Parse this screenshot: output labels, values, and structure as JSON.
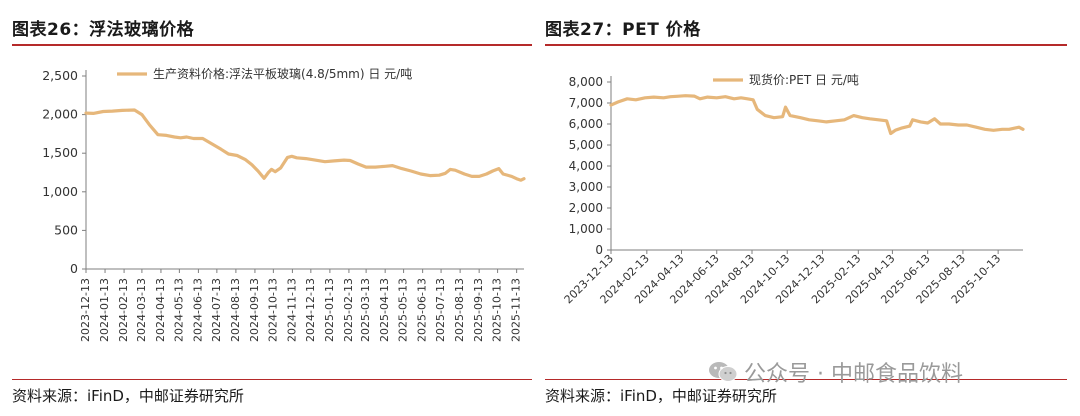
{
  "left_panel": {
    "title": "图表26：浮法玻璃价格",
    "source": "资料来源：iFinD，中邮证券研究所"
  },
  "right_panel": {
    "title": "图表27：PET 价格",
    "source": "资料来源：iFinD，中邮证券研究所"
  },
  "watermark": "公众号 · 中邮食品饮料",
  "colors": {
    "series": "#e6b77b",
    "rule": "#b52a2a"
  },
  "chart_data": [
    {
      "type": "line",
      "title": "图表26：浮法玻璃价格",
      "legend_position": "top",
      "ylim": [
        0,
        2500
      ],
      "yticks": [
        0,
        500,
        1000,
        1500,
        2000,
        2500
      ],
      "ytick_labels": [
        "0",
        "500",
        "1,000",
        "1,500",
        "2,000",
        "2,500"
      ],
      "xtick_labels": [
        "2023-12-13",
        "2024-01-13",
        "2024-02-13",
        "2024-03-13",
        "2024-04-13",
        "2024-05-13",
        "2024-06-13",
        "2024-07-13",
        "2024-08-13",
        "2024-09-13",
        "2024-10-13",
        "2024-11-13",
        "2024-12-13",
        "2025-01-13",
        "2025-02-13",
        "2025-03-13",
        "2025-04-13",
        "2025-05-13",
        "2025-06-13",
        "2025-07-13",
        "2025-08-13",
        "2025-09-13",
        "2025-10-13",
        "2025-11-13"
      ],
      "x_start": "2023-12-13",
      "x_end": "2025-11-25",
      "series": [
        {
          "name": "生产资料价格:浮法平板玻璃(4.8/5mm) 日 元/吨",
          "points": [
            [
              "2023-12-13",
              2020
            ],
            [
              "2023-12-25",
              2015
            ],
            [
              "2024-01-10",
              2040
            ],
            [
              "2024-01-25",
              2045
            ],
            [
              "2024-02-10",
              2055
            ],
            [
              "2024-03-01",
              2060
            ],
            [
              "2024-03-13",
              2000
            ],
            [
              "2024-03-25",
              1870
            ],
            [
              "2024-04-08",
              1740
            ],
            [
              "2024-04-22",
              1730
            ],
            [
              "2024-05-05",
              1710
            ],
            [
              "2024-05-15",
              1700
            ],
            [
              "2024-05-25",
              1710
            ],
            [
              "2024-06-05",
              1690
            ],
            [
              "2024-06-20",
              1690
            ],
            [
              "2024-07-05",
              1620
            ],
            [
              "2024-07-20",
              1550
            ],
            [
              "2024-08-01",
              1490
            ],
            [
              "2024-08-15",
              1470
            ],
            [
              "2024-08-28",
              1420
            ],
            [
              "2024-09-08",
              1350
            ],
            [
              "2024-09-18",
              1270
            ],
            [
              "2024-09-28",
              1175
            ],
            [
              "2024-10-05",
              1250
            ],
            [
              "2024-10-10",
              1290
            ],
            [
              "2024-10-16",
              1260
            ],
            [
              "2024-10-25",
              1310
            ],
            [
              "2024-11-05",
              1445
            ],
            [
              "2024-11-12",
              1460
            ],
            [
              "2024-11-20",
              1440
            ],
            [
              "2024-12-05",
              1430
            ],
            [
              "2024-12-20",
              1410
            ],
            [
              "2025-01-05",
              1390
            ],
            [
              "2025-01-20",
              1400
            ],
            [
              "2025-02-05",
              1410
            ],
            [
              "2025-02-15",
              1405
            ],
            [
              "2025-02-28",
              1360
            ],
            [
              "2025-03-13",
              1320
            ],
            [
              "2025-03-28",
              1320
            ],
            [
              "2025-04-13",
              1330
            ],
            [
              "2025-04-25",
              1340
            ],
            [
              "2025-05-10",
              1300
            ],
            [
              "2025-05-25",
              1270
            ],
            [
              "2025-06-10",
              1230
            ],
            [
              "2025-06-25",
              1210
            ],
            [
              "2025-07-10",
              1215
            ],
            [
              "2025-07-20",
              1240
            ],
            [
              "2025-07-28",
              1290
            ],
            [
              "2025-08-05",
              1280
            ],
            [
              "2025-08-20",
              1230
            ],
            [
              "2025-09-01",
              1200
            ],
            [
              "2025-09-13",
              1200
            ],
            [
              "2025-09-25",
              1230
            ],
            [
              "2025-10-05",
              1270
            ],
            [
              "2025-10-15",
              1300
            ],
            [
              "2025-10-22",
              1230
            ],
            [
              "2025-11-05",
              1200
            ],
            [
              "2025-11-13",
              1170
            ],
            [
              "2025-11-20",
              1150
            ],
            [
              "2025-11-25",
              1170
            ]
          ]
        }
      ]
    },
    {
      "type": "line",
      "title": "图表27：PET 价格",
      "legend_position": "top",
      "ylim": [
        0,
        8000
      ],
      "yticks": [
        0,
        1000,
        2000,
        3000,
        4000,
        5000,
        6000,
        7000,
        8000
      ],
      "ytick_labels": [
        "0",
        "1,000",
        "2,000",
        "3,000",
        "4,000",
        "5,000",
        "6,000",
        "7,000",
        "8,000"
      ],
      "xtick_labels": [
        "2023-12-13",
        "2024-02-13",
        "2024-04-13",
        "2024-06-13",
        "2024-08-13",
        "2024-10-13",
        "2024-12-13",
        "2025-02-13",
        "2025-04-13",
        "2025-06-13",
        "2025-08-13",
        "2025-10-13"
      ],
      "x_start": "2023-12-13",
      "x_end": "2025-11-25",
      "series": [
        {
          "name": "现货价:PET 日 元/吨",
          "points": [
            [
              "2023-12-13",
              6900
            ],
            [
              "2023-12-25",
              7050
            ],
            [
              "2024-01-10",
              7200
            ],
            [
              "2024-01-25",
              7150
            ],
            [
              "2024-02-10",
              7250
            ],
            [
              "2024-02-25",
              7280
            ],
            [
              "2024-03-13",
              7250
            ],
            [
              "2024-03-25",
              7300
            ],
            [
              "2024-04-05",
              7320
            ],
            [
              "2024-04-20",
              7350
            ],
            [
              "2024-05-05",
              7330
            ],
            [
              "2024-05-15",
              7200
            ],
            [
              "2024-05-28",
              7280
            ],
            [
              "2024-06-13",
              7250
            ],
            [
              "2024-06-28",
              7300
            ],
            [
              "2024-07-13",
              7200
            ],
            [
              "2024-07-25",
              7250
            ],
            [
              "2024-08-05",
              7200
            ],
            [
              "2024-08-15",
              7150
            ],
            [
              "2024-08-22",
              6700
            ],
            [
              "2024-09-05",
              6400
            ],
            [
              "2024-09-20",
              6300
            ],
            [
              "2024-10-05",
              6350
            ],
            [
              "2024-10-10",
              6800
            ],
            [
              "2024-10-18",
              6400
            ],
            [
              "2024-11-05",
              6300
            ],
            [
              "2024-11-20",
              6200
            ],
            [
              "2024-12-05",
              6150
            ],
            [
              "2024-12-20",
              6100
            ],
            [
              "2025-01-05",
              6150
            ],
            [
              "2025-01-20",
              6200
            ],
            [
              "2025-02-05",
              6400
            ],
            [
              "2025-02-20",
              6300
            ],
            [
              "2025-03-05",
              6250
            ],
            [
              "2025-03-20",
              6200
            ],
            [
              "2025-04-03",
              6150
            ],
            [
              "2025-04-10",
              5550
            ],
            [
              "2025-04-18",
              5700
            ],
            [
              "2025-04-28",
              5800
            ],
            [
              "2025-05-13",
              5900
            ],
            [
              "2025-05-18",
              6200
            ],
            [
              "2025-06-01",
              6100
            ],
            [
              "2025-06-13",
              6050
            ],
            [
              "2025-06-25",
              6250
            ],
            [
              "2025-07-05",
              6000
            ],
            [
              "2025-07-20",
              6000
            ],
            [
              "2025-08-05",
              5950
            ],
            [
              "2025-08-20",
              5950
            ],
            [
              "2025-09-05",
              5850
            ],
            [
              "2025-09-20",
              5750
            ],
            [
              "2025-10-05",
              5700
            ],
            [
              "2025-10-20",
              5750
            ],
            [
              "2025-11-01",
              5750
            ],
            [
              "2025-11-10",
              5800
            ],
            [
              "2025-11-18",
              5850
            ],
            [
              "2025-11-25",
              5750
            ]
          ]
        }
      ]
    }
  ]
}
